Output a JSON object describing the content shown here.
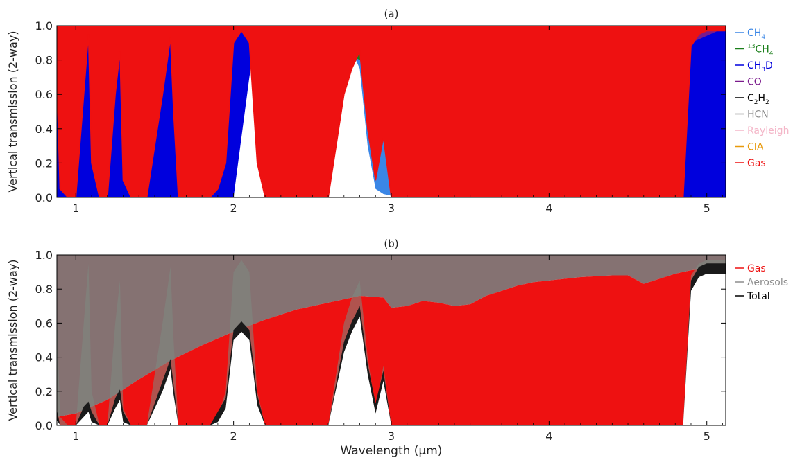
{
  "chart_data": [
    {
      "type": "area",
      "title": "(a)",
      "ylabel": "Vertical transmission (2-way)",
      "xlabel": "",
      "xlim": [
        0.88,
        5.12
      ],
      "ylim": [
        0,
        1
      ],
      "x_ticks": [
        1,
        2,
        3,
        4,
        5
      ],
      "x_tick_labels": [
        "1",
        "2",
        "3",
        "4",
        "5"
      ],
      "y_ticks": [
        0,
        0.2,
        0.4,
        0.6,
        0.8,
        1.0
      ],
      "y_tick_labels": [
        "0.0",
        "0.2",
        "0.4",
        "0.6",
        "0.8",
        "1.0"
      ],
      "grid": false,
      "legend_position": "right",
      "legend": [
        {
          "key": "ch4",
          "name_main": "CH",
          "name_sub": "4",
          "color": "#3a86e6"
        },
        {
          "key": "c13h4",
          "name_pre": "13",
          "name_main": "CH",
          "name_sub": "4",
          "color": "#1a7f1a"
        },
        {
          "key": "ch3d",
          "name_main": "CH",
          "name_sub": "3",
          "name_post": "D",
          "color": "#0000dd"
        },
        {
          "key": "co",
          "name": "CO",
          "color": "#7a1a8c"
        },
        {
          "key": "c2h2",
          "name_main": "C",
          "name_sub": "2",
          "name_post": "H",
          "name_sub2": "2",
          "color": "#000000"
        },
        {
          "key": "hcn",
          "name": "HCN",
          "color": "#8c8c8c"
        },
        {
          "key": "rayleigh",
          "name": "Rayleigh",
          "color": "#f4b6c8"
        },
        {
          "key": "cia",
          "name": "CIA",
          "color": "#e89a0c"
        },
        {
          "key": "gas",
          "name": "Gas",
          "color": "#ee1111"
        }
      ],
      "series": [
        {
          "key": "rayleigh",
          "x": [
            0.88,
            1.0,
            1.5,
            2.0,
            3.0,
            4.0,
            5.12
          ],
          "values": [
            0.96,
            0.97,
            0.985,
            0.99,
            0.995,
            0.998,
            0.999
          ]
        },
        {
          "key": "ch4",
          "x": [
            0.88,
            0.93,
            1.0,
            1.05,
            1.08,
            1.12,
            1.18,
            1.25,
            1.28,
            1.32,
            1.4,
            1.5,
            1.55,
            1.6,
            1.65,
            1.75,
            1.85,
            1.95,
            2.0,
            2.05,
            2.1,
            2.15,
            2.2,
            2.3,
            2.4,
            2.5,
            2.6,
            2.7,
            2.75,
            2.8,
            2.85,
            2.9,
            2.95,
            3.0,
            3.05,
            3.1,
            3.15,
            3.2,
            3.25,
            3.3,
            3.5,
            4.0,
            4.5,
            4.85,
            4.9,
            4.95,
            5.0,
            5.12
          ],
          "values": [
            0.6,
            0.02,
            0.05,
            0.9,
            0.95,
            0.05,
            0.02,
            0.9,
            0.95,
            0.05,
            0.02,
            0.1,
            0.8,
            0.9,
            0.05,
            0.0,
            0.02,
            0.05,
            0.98,
            0.99,
            0.98,
            0.3,
            0.02,
            0.0,
            0.0,
            0.0,
            0.3,
            0.8,
            0.85,
            0.75,
            0.3,
            0.05,
            0.02,
            0.01,
            0.02,
            0.05,
            0.1,
            0.05,
            0.02,
            0.0,
            0.0,
            0.0,
            0.0,
            0.05,
            0.92,
            0.97,
            0.98,
            0.98
          ]
        },
        {
          "key": "c13h4",
          "x": [
            0.88,
            0.9,
            1.0,
            1.05,
            1.1,
            1.2,
            1.3,
            1.4,
            1.5,
            1.55,
            1.65,
            1.75,
            1.8,
            1.9,
            2.0,
            2.1,
            2.2,
            2.3,
            2.5,
            2.6,
            2.65,
            2.7,
            2.8,
            2.9,
            2.95,
            3.0,
            3.1,
            3.15,
            3.2,
            3.5,
            3.6,
            3.7,
            3.8,
            3.9,
            3.95,
            4.0,
            4.05,
            5.12
          ],
          "values": [
            0.95,
            0.96,
            0.97,
            0.98,
            0.97,
            0.96,
            0.95,
            0.94,
            0.93,
            0.92,
            0.9,
            0.9,
            0.95,
            0.97,
            0.98,
            0.96,
            0.97,
            0.99,
            0.99,
            0.98,
            0.9,
            0.85,
            0.8,
            0.7,
            0.6,
            0.5,
            0.6,
            0.7,
            0.01,
            0.05,
            0.3,
            0.65,
            0.5,
            0.3,
            0.2,
            0.05,
            0.0,
            0.0
          ]
        },
        {
          "key": "ch3d",
          "x": [
            0.88,
            1.0,
            1.5,
            2.0,
            2.1,
            2.15,
            2.3,
            2.35,
            2.4,
            2.5,
            3.0,
            3.5,
            3.8,
            3.9,
            3.95,
            4.0,
            5.12
          ],
          "values": [
            0.0,
            0.0,
            0.0,
            0.0,
            0.7,
            0.99,
            0.99,
            0.9,
            0.99,
            1.0,
            1.0,
            1.0,
            1.0,
            0.95,
            0.8,
            0.0,
            0.0
          ]
        },
        {
          "key": "cia",
          "x": [
            0.88,
            2.0,
            2.2,
            2.25,
            2.3,
            2.35,
            2.4,
            2.45,
            2.5,
            3.5,
            3.8,
            3.85,
            3.9,
            3.95,
            4.0,
            4.1,
            4.2,
            4.3,
            4.4,
            4.45,
            4.5,
            4.6,
            5.12
          ],
          "values": [
            1.0,
            1.0,
            0.98,
            0.7,
            0.75,
            0.9,
            0.99,
            0.98,
            1.0,
            1.0,
            1.0,
            0.95,
            0.6,
            0.3,
            0.05,
            0.01,
            0.02,
            0.05,
            0.2,
            0.6,
            0.95,
            1.0,
            1.0
          ]
        },
        {
          "key": "co",
          "x": [
            0.88,
            4.5,
            4.52,
            4.55,
            4.6,
            4.7,
            4.8,
            4.85,
            4.9,
            5.12
          ],
          "values": [
            1.0,
            1.0,
            0.95,
            0.8,
            0.4,
            0.05,
            0.01,
            0.02,
            0.9,
            0.99
          ]
        },
        {
          "key": "c2h2",
          "x": [
            0.88,
            2.9,
            2.95,
            3.0,
            3.03,
            3.05,
            3.07,
            3.1,
            3.15,
            5.12
          ],
          "values": [
            1.0,
            1.0,
            0.95,
            0.6,
            0.1,
            0.0,
            0.1,
            0.6,
            0.98,
            1.0
          ]
        },
        {
          "key": "hcn",
          "x": [
            0.88,
            3.0,
            3.02,
            3.05,
            3.08,
            3.1,
            5.12
          ],
          "values": [
            1.0,
            1.0,
            0.97,
            0.92,
            0.97,
            1.0,
            1.0
          ]
        },
        {
          "key": "gas",
          "x": [
            0.88,
            0.9,
            0.95,
            1.0,
            1.05,
            1.08,
            1.1,
            1.15,
            1.2,
            1.25,
            1.28,
            1.3,
            1.35,
            1.45,
            1.55,
            1.6,
            1.62,
            1.65,
            1.75,
            1.85,
            1.9,
            1.95,
            2.0,
            2.05,
            2.1,
            2.15,
            2.2,
            2.4,
            2.6,
            2.7,
            2.75,
            2.8,
            2.85,
            2.9,
            2.95,
            3.0,
            3.5,
            4.0,
            4.5,
            4.85,
            4.9,
            4.95,
            5.0,
            5.12
          ],
          "values": [
            0.68,
            0.05,
            0.0,
            0.0,
            0.6,
            0.95,
            0.2,
            0.0,
            0.0,
            0.6,
            0.85,
            0.1,
            0.0,
            0.0,
            0.6,
            0.93,
            0.5,
            0.0,
            0.0,
            0.0,
            0.05,
            0.2,
            0.9,
            0.97,
            0.9,
            0.2,
            0.0,
            0.0,
            0.0,
            0.6,
            0.75,
            0.85,
            0.4,
            0.1,
            0.35,
            0.0,
            0.0,
            0.0,
            0.0,
            0.0,
            0.88,
            0.95,
            0.97,
            0.97
          ]
        }
      ]
    },
    {
      "type": "area",
      "title": "(b)",
      "ylabel": "Vertical transmission (2-way)",
      "xlabel": "Wavelength (μm)",
      "xlim": [
        0.88,
        5.12
      ],
      "ylim": [
        0,
        1
      ],
      "x_ticks": [
        1,
        2,
        3,
        4,
        5
      ],
      "x_tick_labels": [
        "1",
        "2",
        "3",
        "4",
        "5"
      ],
      "y_ticks": [
        0,
        0.2,
        0.4,
        0.6,
        0.8,
        1.0
      ],
      "y_tick_labels": [
        "0.0",
        "0.2",
        "0.4",
        "0.6",
        "0.8",
        "1.0"
      ],
      "grid": false,
      "legend_position": "right",
      "legend": [
        {
          "key": "gas",
          "name": "Gas",
          "color": "#ee1111"
        },
        {
          "key": "aerosols",
          "name": "Aerosols",
          "color": "#8c8c8c"
        },
        {
          "key": "total",
          "name": "Total",
          "color": "#000000"
        }
      ],
      "series": [
        {
          "key": "gas",
          "x": [
            0.88,
            0.9,
            0.95,
            1.0,
            1.05,
            1.08,
            1.1,
            1.15,
            1.2,
            1.25,
            1.28,
            1.3,
            1.35,
            1.45,
            1.55,
            1.6,
            1.62,
            1.65,
            1.75,
            1.85,
            1.9,
            1.95,
            2.0,
            2.05,
            2.1,
            2.15,
            2.2,
            2.4,
            2.6,
            2.7,
            2.75,
            2.8,
            2.85,
            2.9,
            2.95,
            3.0,
            3.5,
            4.0,
            4.5,
            4.85,
            4.9,
            4.95,
            5.0,
            5.12
          ],
          "values": [
            0.68,
            0.05,
            0.0,
            0.0,
            0.6,
            0.95,
            0.2,
            0.0,
            0.0,
            0.6,
            0.85,
            0.1,
            0.0,
            0.0,
            0.6,
            0.93,
            0.5,
            0.0,
            0.0,
            0.0,
            0.05,
            0.2,
            0.9,
            0.97,
            0.9,
            0.2,
            0.0,
            0.0,
            0.0,
            0.6,
            0.75,
            0.85,
            0.4,
            0.1,
            0.35,
            0.0,
            0.0,
            0.0,
            0.0,
            0.0,
            0.88,
            0.95,
            0.97,
            0.97
          ]
        },
        {
          "key": "aerosols",
          "x": [
            0.88,
            1.0,
            1.2,
            1.4,
            1.6,
            1.8,
            2.0,
            2.2,
            2.4,
            2.6,
            2.8,
            2.95,
            3.0,
            3.1,
            3.2,
            3.3,
            3.4,
            3.5,
            3.6,
            3.7,
            3.8,
            3.9,
            4.0,
            4.2,
            4.4,
            4.5,
            4.6,
            4.7,
            4.8,
            4.9,
            5.0,
            5.12
          ],
          "values": [
            0.05,
            0.07,
            0.15,
            0.27,
            0.38,
            0.47,
            0.55,
            0.62,
            0.68,
            0.72,
            0.76,
            0.75,
            0.69,
            0.7,
            0.73,
            0.72,
            0.7,
            0.71,
            0.76,
            0.79,
            0.82,
            0.84,
            0.85,
            0.87,
            0.88,
            0.88,
            0.83,
            0.86,
            0.89,
            0.91,
            0.92,
            0.92
          ]
        },
        {
          "key": "total",
          "x": [
            0.88,
            0.9,
            0.95,
            1.0,
            1.05,
            1.08,
            1.1,
            1.15,
            1.2,
            1.25,
            1.28,
            1.3,
            1.35,
            1.45,
            1.55,
            1.6,
            1.62,
            1.65,
            1.75,
            1.85,
            1.9,
            1.95,
            2.0,
            2.05,
            2.1,
            2.15,
            2.2,
            2.4,
            2.6,
            2.7,
            2.75,
            2.8,
            2.85,
            2.9,
            2.95,
            3.0,
            3.5,
            4.0,
            4.5,
            4.85,
            4.9,
            4.95,
            5.0,
            5.12
          ],
          "values": [
            0.03,
            0.003,
            0.0,
            0.0,
            0.05,
            0.08,
            0.02,
            0.0,
            0.0,
            0.1,
            0.15,
            0.02,
            0.0,
            0.0,
            0.2,
            0.33,
            0.18,
            0.0,
            0.0,
            0.0,
            0.02,
            0.1,
            0.5,
            0.55,
            0.5,
            0.12,
            0.0,
            0.0,
            0.0,
            0.43,
            0.55,
            0.64,
            0.3,
            0.07,
            0.26,
            0.0,
            0.0,
            0.0,
            0.0,
            0.0,
            0.79,
            0.87,
            0.89,
            0.89
          ]
        }
      ]
    }
  ]
}
